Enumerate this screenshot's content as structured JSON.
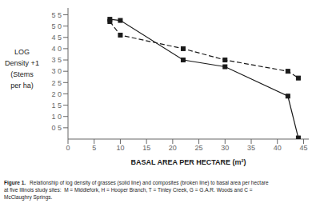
{
  "chart_data": {
    "type": "line",
    "xlabel": "BASAL AREA PER HECTARE (m²)",
    "ylabel": [
      "LOG",
      "Density +1",
      "(Stems",
      "per ha)"
    ],
    "annotations": [
      "Figure 1.",
      "Relationship of log density of grasses (solid line) and composites (broken line) to basal area per hectare",
      "at five Illinois study sites:  M = Middlefork, H = Hooper Branch, T = Tinley Creek, G = G.A.R. Woods and C =",
      "McClaughry Springs."
    ],
    "x": [
      8,
      10,
      22,
      30,
      42,
      44
    ],
    "series": [
      {
        "values": [
          5.3,
          5.25,
          3.5,
          3.2,
          1.9,
          0.05
        ],
        "color": "#1a1a1a",
        "line_style": "solid",
        "marker": "square"
      },
      {
        "values": [
          5.2,
          4.6,
          4.0,
          3.5,
          3.0,
          2.7
        ],
        "color": "#1a1a1a",
        "line_style": "dashed",
        "marker": "square"
      }
    ],
    "xlim": [
      0,
      46
    ],
    "ylim": [
      0,
      5.8
    ],
    "xticks": [
      0,
      5,
      10,
      15,
      20,
      25,
      30,
      35,
      40,
      45
    ],
    "yticks": [
      {
        "value": 0.5,
        "label": "0 5"
      },
      {
        "value": 1.0,
        "label": "1 0"
      },
      {
        "value": 1.5,
        "label": "1 5"
      },
      {
        "value": 2.0,
        "label": "2 0"
      },
      {
        "value": 2.5,
        "label": "2 5"
      },
      {
        "value": 3.0,
        "label": "3 0"
      },
      {
        "value": 3.5,
        "label": "3 5"
      },
      {
        "value": 4.0,
        "label": "4 0"
      },
      {
        "value": 4.5,
        "label": "4 5"
      },
      {
        "value": 5.0,
        "label": "5 0"
      },
      {
        "value": 5.5,
        "label": "5 5"
      }
    ],
    "grid": false
  }
}
